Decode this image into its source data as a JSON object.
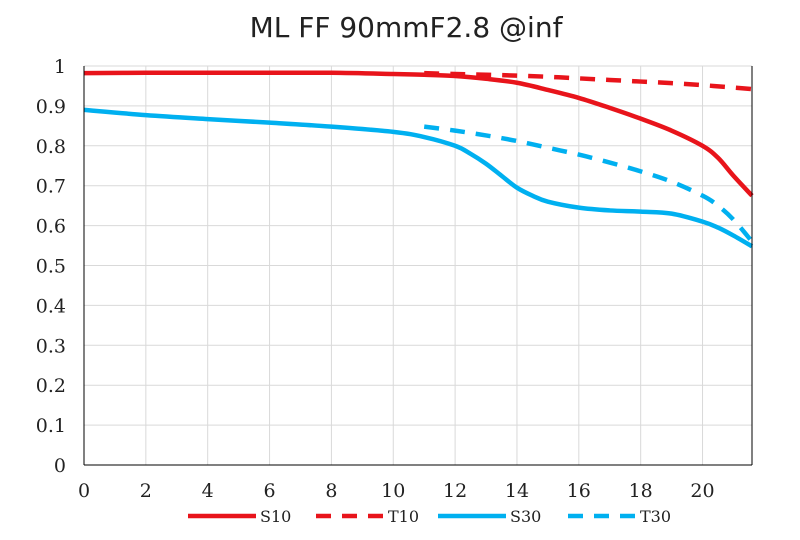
{
  "chart_data": {
    "type": "line",
    "title": "ML FF 90mmF2.8 @inf",
    "xlabel": "",
    "ylabel": "",
    "xlim": [
      0,
      21.6
    ],
    "ylim": [
      0,
      1
    ],
    "x_ticks": [
      0,
      2,
      4,
      6,
      8,
      10,
      12,
      14,
      16,
      18,
      20
    ],
    "x_tick_labels": [
      "0",
      "2",
      "4",
      "6",
      "8",
      "10",
      "12",
      "14",
      "16",
      "18",
      "20"
    ],
    "y_ticks": [
      0,
      0.1,
      0.2,
      0.3,
      0.4,
      0.5,
      0.6,
      0.7,
      0.8,
      0.9,
      1
    ],
    "y_tick_labels": [
      "0",
      "0.1",
      "0.2",
      "0.3",
      "0.4",
      "0.5",
      "0.6",
      "0.7",
      "0.8",
      "0.9",
      "1"
    ],
    "grid": true,
    "legend_position": "bottom",
    "series": [
      {
        "name": "S10",
        "color": "#e8141b",
        "dashed": false,
        "x": [
          0,
          2,
          4,
          6,
          8,
          10,
          11,
          12,
          13,
          14,
          15,
          16,
          17,
          18,
          19,
          20,
          20.5,
          21,
          21.6
        ],
        "y": [
          0.982,
          0.983,
          0.983,
          0.983,
          0.983,
          0.98,
          0.978,
          0.975,
          0.968,
          0.958,
          0.94,
          0.92,
          0.895,
          0.868,
          0.838,
          0.8,
          0.77,
          0.725,
          0.675
        ]
      },
      {
        "name": "T10",
        "color": "#e8141b",
        "dashed": true,
        "x": [
          11,
          12,
          13,
          14,
          15,
          16,
          17,
          18,
          19,
          20,
          21,
          21.6
        ],
        "y": [
          0.982,
          0.98,
          0.978,
          0.976,
          0.973,
          0.969,
          0.965,
          0.961,
          0.957,
          0.952,
          0.946,
          0.942
        ]
      },
      {
        "name": "S30",
        "color": "#00b0f0",
        "dashed": false,
        "x": [
          0,
          2,
          4,
          6,
          8,
          10,
          11,
          12,
          12.5,
          13,
          13.5,
          14,
          14.5,
          15,
          16,
          17,
          18,
          19,
          20,
          20.5,
          21,
          21.6
        ],
        "y": [
          0.89,
          0.877,
          0.867,
          0.858,
          0.848,
          0.835,
          0.822,
          0.8,
          0.78,
          0.755,
          0.725,
          0.695,
          0.675,
          0.66,
          0.645,
          0.638,
          0.635,
          0.63,
          0.61,
          0.595,
          0.575,
          0.548
        ]
      },
      {
        "name": "T30",
        "color": "#00b0f0",
        "dashed": true,
        "x": [
          11,
          12,
          13,
          14,
          15,
          16,
          17,
          18,
          19,
          20,
          20.5,
          21,
          21.6
        ],
        "y": [
          0.848,
          0.838,
          0.826,
          0.812,
          0.795,
          0.778,
          0.758,
          0.736,
          0.71,
          0.675,
          0.65,
          0.615,
          0.56
        ]
      }
    ]
  }
}
